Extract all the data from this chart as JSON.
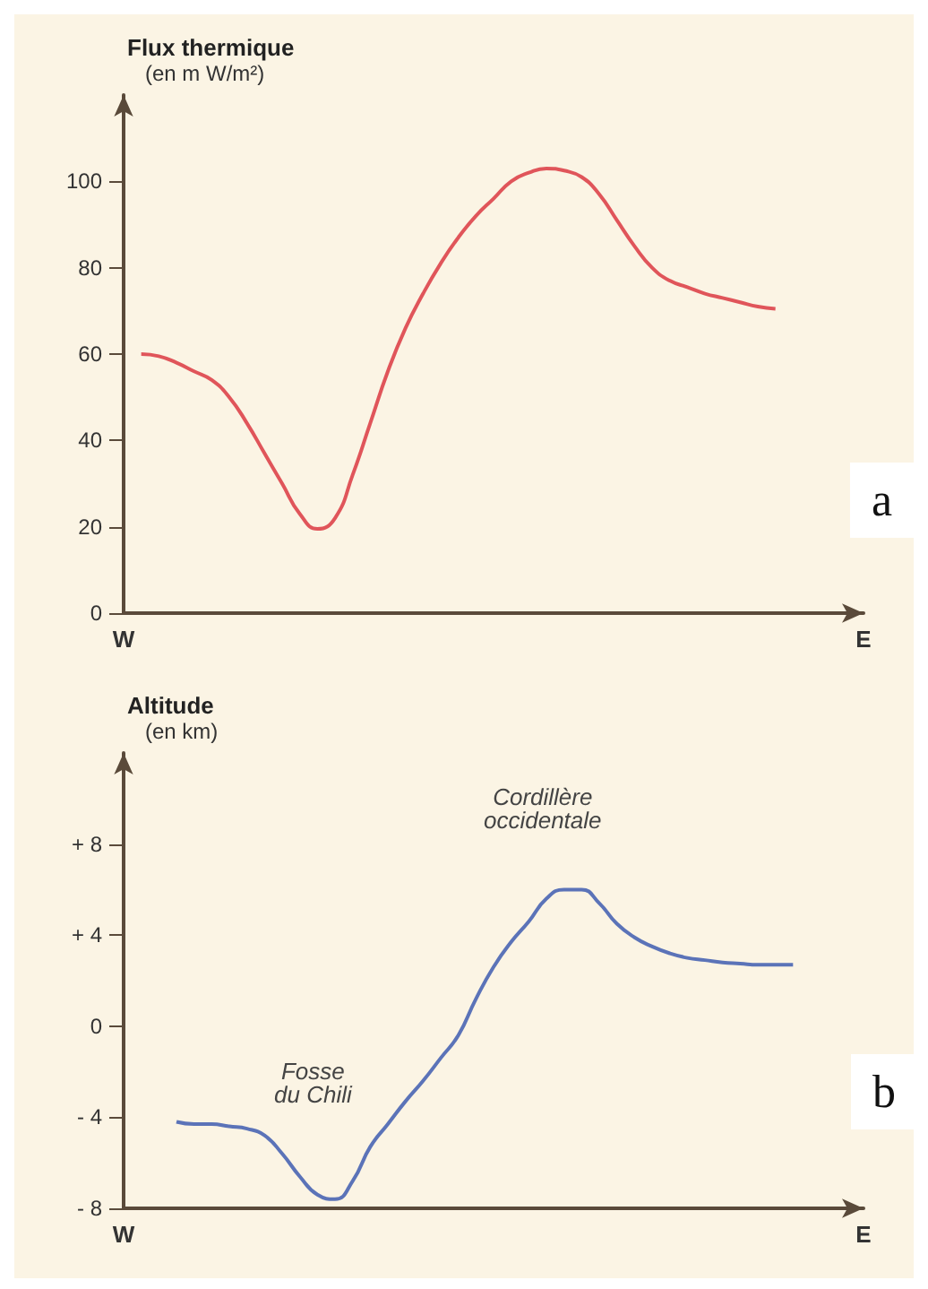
{
  "chart_data": [
    {
      "type": "line",
      "ylabel": "Flux thermique\n(en m W/m²)",
      "categories": [
        "W",
        null,
        null,
        null,
        null,
        null,
        null,
        null,
        null,
        null,
        null,
        null,
        null,
        null,
        null,
        null,
        null,
        null,
        null,
        null,
        null,
        null,
        null,
        null,
        null,
        null,
        null,
        null,
        null,
        null,
        null,
        null,
        null,
        null,
        null,
        null,
        null,
        null,
        null,
        null,
        null,
        null,
        "E"
      ],
      "series": [
        {
          "color": "#e0555a",
          "values": [
            null,
            60,
            59.5,
            58,
            56,
            54,
            50,
            44,
            37,
            30,
            23,
            19.5,
            22,
            32,
            44,
            56,
            66,
            74,
            81,
            87,
            92,
            96,
            100,
            102,
            103,
            102.5,
            101,
            97,
            91,
            85,
            80,
            77,
            75.5,
            74,
            73,
            72,
            71,
            70.5,
            null,
            null,
            null,
            null,
            null
          ]
        }
      ],
      "ylim": [
        0,
        120
      ],
      "yticks": [
        0,
        20,
        40,
        60,
        80,
        100
      ],
      "grid": false,
      "marker": "none",
      "annotations": [
        "a"
      ]
    },
    {
      "type": "line",
      "ylabel": "Altitude\n(en km)",
      "categories": [
        "W",
        null,
        null,
        null,
        null,
        null,
        null,
        null,
        null,
        null,
        null,
        null,
        null,
        null,
        null,
        null,
        null,
        null,
        null,
        null,
        null,
        null,
        null,
        null,
        null,
        null,
        null,
        null,
        null,
        null,
        null,
        null,
        null,
        null,
        null,
        null,
        null,
        null,
        null,
        null,
        null,
        null,
        "E"
      ],
      "series": [
        {
          "color": "#5b73b8",
          "values": [
            null,
            null,
            null,
            -4.2,
            -4.3,
            -4.3,
            -4.4,
            -4.5,
            -4.8,
            -5.6,
            -6.6,
            -7.4,
            -7.6,
            -6.8,
            -5.3,
            -4.3,
            -3.3,
            -2.4,
            -1.4,
            -0.4,
            1.2,
            2.6,
            3.7,
            4.6,
            5.6,
            6.0,
            6.0,
            5.4,
            4.5,
            3.9,
            3.5,
            3.2,
            3.0,
            2.9,
            2.8,
            2.75,
            2.7,
            2.7,
            2.7,
            null,
            null,
            null,
            null
          ]
        }
      ],
      "ylim": [
        -8,
        12
      ],
      "yticks": [
        {
          "value": 8,
          "label": "+ 8"
        },
        {
          "value": 4,
          "label": "+ 4"
        },
        0,
        {
          "value": -4,
          "label": "- 4"
        },
        {
          "value": -8,
          "label": "- 8"
        }
      ],
      "grid": false,
      "marker": "none",
      "annotations": [
        "Fosse\ndu Chili",
        "Cordillère\noccidentale",
        "b"
      ]
    }
  ]
}
